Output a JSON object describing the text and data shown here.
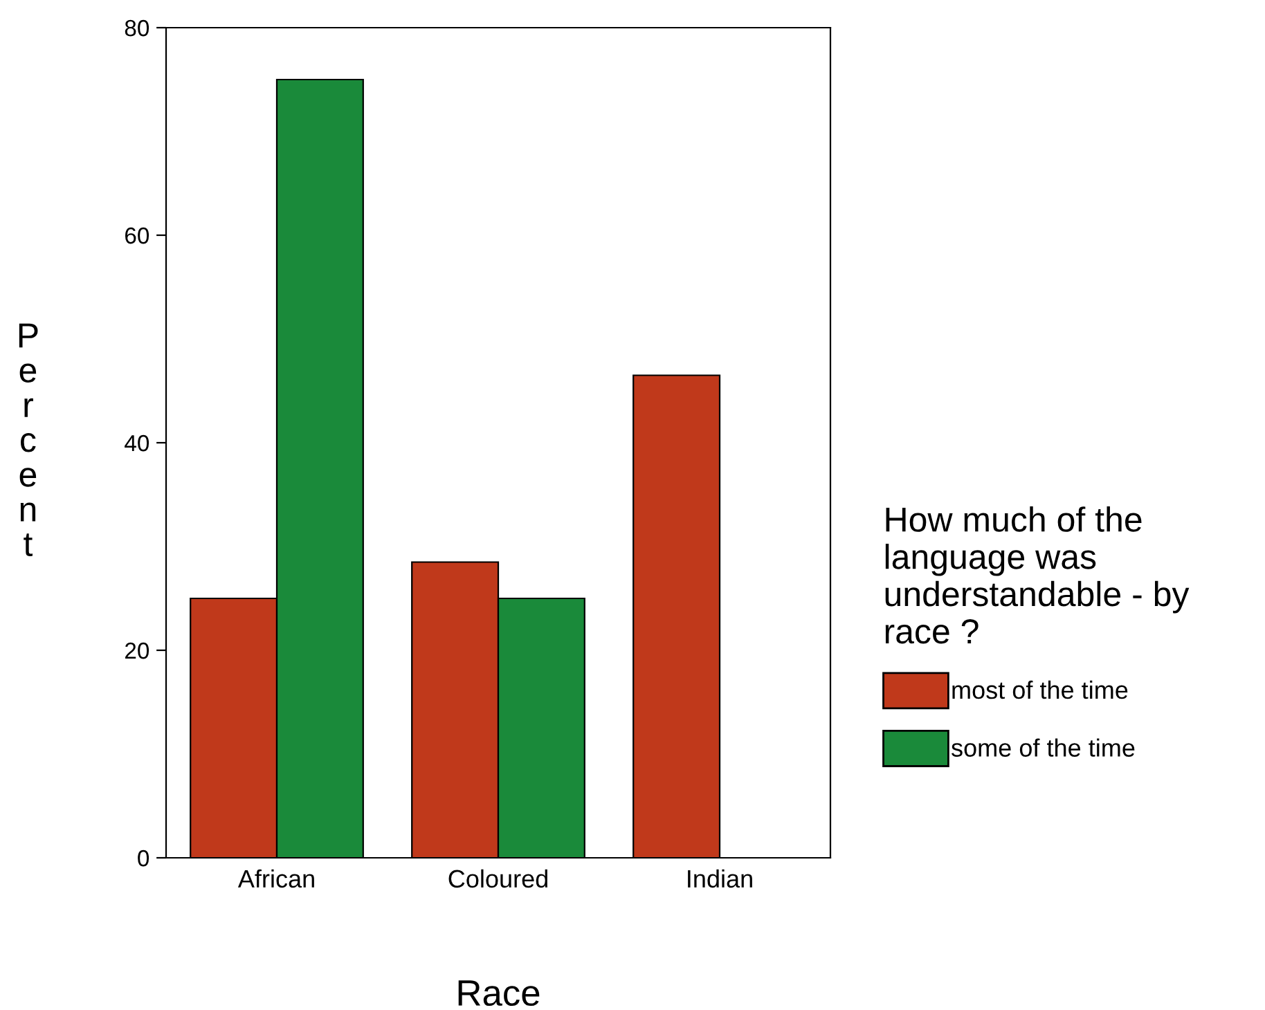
{
  "chart_data": {
    "type": "bar",
    "xlabel": "Race",
    "ylabel": "Percent",
    "legend_title": "How much of the\nlanguage was\nunderstandable - by\nrace ?",
    "categories": [
      "African",
      "Coloured",
      "Indian"
    ],
    "series": [
      {
        "name": "most of the time",
        "color": "#c0391b",
        "values": [
          25,
          28.5,
          46.5
        ]
      },
      {
        "name": "some of the time",
        "color": "#1a8a3a",
        "values": [
          75,
          25,
          null
        ]
      }
    ],
    "ylim": [
      0,
      80
    ],
    "yticks": [
      0,
      20,
      40,
      60,
      80
    ],
    "legend": "right",
    "grid": false
  }
}
